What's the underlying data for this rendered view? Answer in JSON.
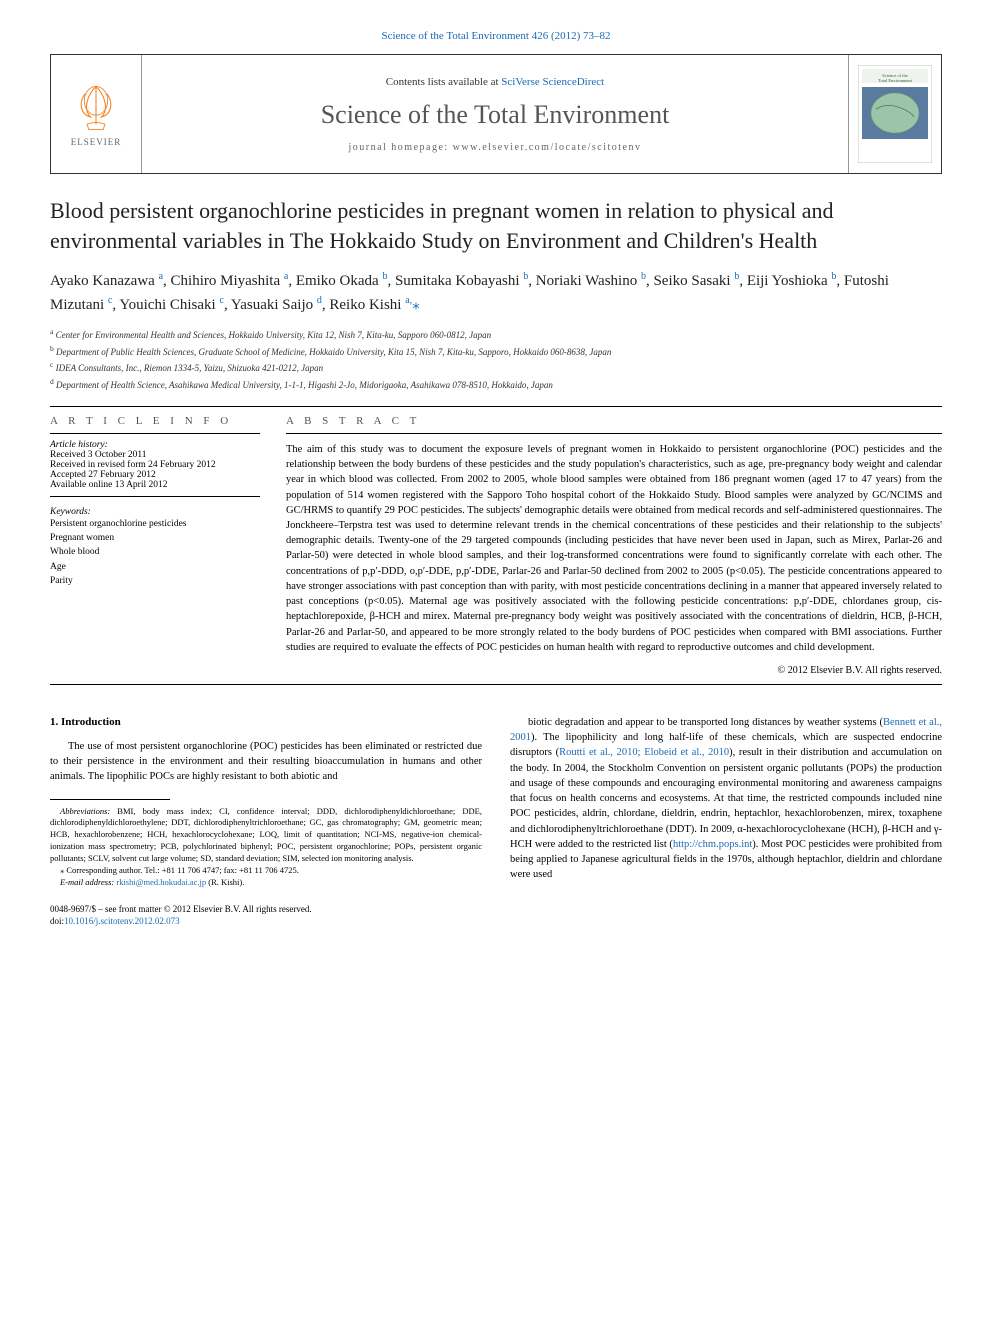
{
  "colors": {
    "link": "#1b6ab5",
    "text": "#000000",
    "background": "#ffffff",
    "heading_gray": "#555555",
    "rule": "#000000",
    "elsevier_orange": "#f58220",
    "cover_green": "#6b9c6b",
    "cover_blue": "#5a7ba0"
  },
  "top_link": "Science of the Total Environment 426 (2012) 73–82",
  "header": {
    "contents_prefix": "Contents lists available at ",
    "contents_link": "SciVerse ScienceDirect",
    "journal": "Science of the Total Environment",
    "homepage": "journal homepage: www.elsevier.com/locate/scitotenv",
    "elsevier_label": "ELSEVIER"
  },
  "title": "Blood persistent organochlorine pesticides in pregnant women in relation to physical and environmental variables in The Hokkaido Study on Environment and Children's Health",
  "authors": [
    {
      "name": "Ayako Kanazawa",
      "sup": "a"
    },
    {
      "name": "Chihiro Miyashita",
      "sup": "a"
    },
    {
      "name": "Emiko Okada",
      "sup": "b"
    },
    {
      "name": "Sumitaka Kobayashi",
      "sup": "b"
    },
    {
      "name": "Noriaki Washino",
      "sup": "b"
    },
    {
      "name": "Seiko Sasaki",
      "sup": "b"
    },
    {
      "name": "Eiji Yoshioka",
      "sup": "b"
    },
    {
      "name": "Futoshi Mizutani",
      "sup": "c"
    },
    {
      "name": "Youichi Chisaki",
      "sup": "c"
    },
    {
      "name": "Yasuaki Saijo",
      "sup": "d"
    },
    {
      "name": "Reiko Kishi",
      "sup": "a,",
      "corr": true
    }
  ],
  "affiliations": [
    {
      "key": "a",
      "text": "Center for Environmental Health and Sciences, Hokkaido University, Kita 12, Nish 7, Kita-ku, Sapporo 060-0812, Japan"
    },
    {
      "key": "b",
      "text": "Department of Public Health Sciences, Graduate School of Medicine, Hokkaido University, Kita 15, Nish 7, Kita-ku, Sapporo, Hokkaido 060-8638, Japan"
    },
    {
      "key": "c",
      "text": "IDEA Consultants, Inc., Riemon 1334-5, Yaizu, Shizuoka 421-0212, Japan"
    },
    {
      "key": "d",
      "text": "Department of Health Science, Asahikawa Medical University, 1-1-1, Higashi 2-Jo, Midorigaoka, Asahikawa 078-8510, Hokkaido, Japan"
    }
  ],
  "article_info": {
    "heading": "A R T I C L E   I N F O",
    "history_label": "Article history:",
    "history": [
      "Received 3 October 2011",
      "Received in revised form 24 February 2012",
      "Accepted 27 February 2012",
      "Available online 13 April 2012"
    ],
    "keywords_label": "Keywords:",
    "keywords": [
      "Persistent organochlorine pesticides",
      "Pregnant women",
      "Whole blood",
      "Age",
      "Parity"
    ]
  },
  "abstract": {
    "heading": "A B S T R A C T",
    "body": "The aim of this study was to document the exposure levels of pregnant women in Hokkaido to persistent organochlorine (POC) pesticides and the relationship between the body burdens of these pesticides and the study population's characteristics, such as age, pre-pregnancy body weight and calendar year in which blood was collected. From 2002 to 2005, whole blood samples were obtained from 186 pregnant women (aged 17 to 47 years) from the population of 514 women registered with the Sapporo Toho hospital cohort of the Hokkaido Study. Blood samples were analyzed by GC/NCIMS and GC/HRMS to quantify 29 POC pesticides. The subjects' demographic details were obtained from medical records and self-administered questionnaires. The Jonckheere–Terpstra test was used to determine relevant trends in the chemical concentrations of these pesticides and their relationship to the subjects' demographic details. Twenty-one of the 29 targeted compounds (including pesticides that have never been used in Japan, such as Mirex, Parlar-26 and Parlar-50) were detected in whole blood samples, and their log-transformed concentrations were found to significantly correlate with each other. The concentrations of p,p′-DDD, o,p′-DDE, p,p′-DDE, Parlar-26 and Parlar-50 declined from 2002 to 2005 (p<0.05). The pesticide concentrations appeared to have stronger associations with past conception than with parity, with most pesticide concentrations declining in a manner that appeared inversely related to past conceptions (p<0.05). Maternal age was positively associated with the following pesticide concentrations: p,p′-DDE, chlordanes group, cis-heptachlorepoxide, β-HCH and mirex. Maternal pre-pregnancy body weight was positively associated with the concentrations of dieldrin, HCB, β-HCH, Parlar-26 and Parlar-50, and appeared to be more strongly related to the body burdens of POC pesticides when compared with BMI associations. Further studies are required to evaluate the effects of POC pesticides on human health with regard to reproductive outcomes and child development.",
    "copyright": "© 2012 Elsevier B.V. All rights reserved."
  },
  "introduction": {
    "heading": "1. Introduction",
    "col1_p1": "The use of most persistent organochlorine (POC) pesticides has been eliminated or restricted due to their persistence in the environment and their resulting bioaccumulation in humans and other animals. The lipophilic POCs are highly resistant to both abiotic and",
    "col2_p1_a": "biotic degradation and appear to be transported long distances by weather systems (",
    "col2_p1_ref1": "Bennett et al., 2001",
    "col2_p1_b": "). The lipophilicity and long half-life of these chemicals, which are suspected endocrine disruptors (",
    "col2_p1_ref2": "Routti et al., 2010; Elobeid et al., 2010",
    "col2_p1_c": "), result in their distribution and accumulation on the body. In 2004, the Stockholm Convention on persistent organic pollutants (POPs) the production and usage of these compounds and encouraging environmental monitoring and awareness campaigns that focus on health concerns and ecosystems. At that time, the restricted compounds included nine POC pesticides, aldrin, chlordane, dieldrin, endrin, heptachlor, hexachlorobenzen, mirex, toxaphene and dichlorodiphenyltrichloroethane (DDT). In 2009, α-hexachlorocyclohexane (HCH), β-HCH and γ-HCH were added to the restricted list (",
    "col2_p1_url": "http://chm.pops.int",
    "col2_p1_d": "). Most POC pesticides were prohibited from being applied to Japanese agricultural fields in the 1970s, although heptachlor, dieldrin and chlordane were used"
  },
  "footnotes": {
    "abbrev_label": "Abbreviations:",
    "abbrev_body": " BMI, body mass index; CI, confidence interval; DDD, dichlorodiphenyldichloroethane; DDE, dichlorodiphenyldichloroethylene; DDT, dichlorodiphenyltrichloroethane; GC, gas chromatography; GM, geometric mean; HCB, hexachlorobenzene; HCH, hexachlorocyclohexane; LOQ, limit of quantitation; NCI-MS, negative-ion chemical-ionization mass spectrometry; PCB, polychlorinated biphenyl; POC, persistent organochlorine; POPs, persistent organic pollutants; SCLV, solvent cut large volume; SD, standard deviation; SIM, selected ion monitoring analysis.",
    "corr": "⁎ Corresponding author. Tel.: +81 11 706 4747; fax: +81 11 706 4725.",
    "email_label": "E-mail address:",
    "email": "rkishi@med.hokudai.ac.jp",
    "email_who": " (R. Kishi)."
  },
  "doi": {
    "line1": "0048-9697/$ – see front matter © 2012 Elsevier B.V. All rights reserved.",
    "prefix": "doi:",
    "link": "10.1016/j.scitotenv.2012.02.073"
  }
}
